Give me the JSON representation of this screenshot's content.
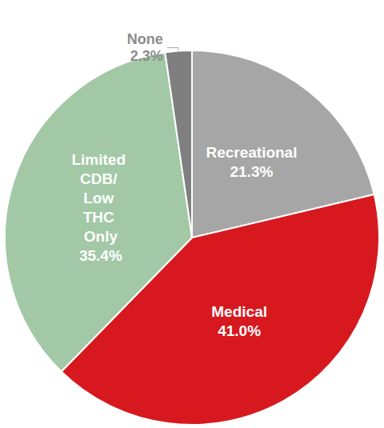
{
  "chart_data": {
    "type": "pie",
    "categories": [
      "Recreational",
      "Medical",
      "Limited CDB/ Low THC Only",
      "None"
    ],
    "values": [
      21.3,
      41.0,
      35.4,
      2.3
    ],
    "value_labels": [
      "21.3%",
      "41.0%",
      "35.4%",
      "2.3%"
    ],
    "colors": [
      "#a6a6a6",
      "#d7191f",
      "#a2c8a6",
      "#7f7f7f"
    ],
    "data_labels": true
  }
}
